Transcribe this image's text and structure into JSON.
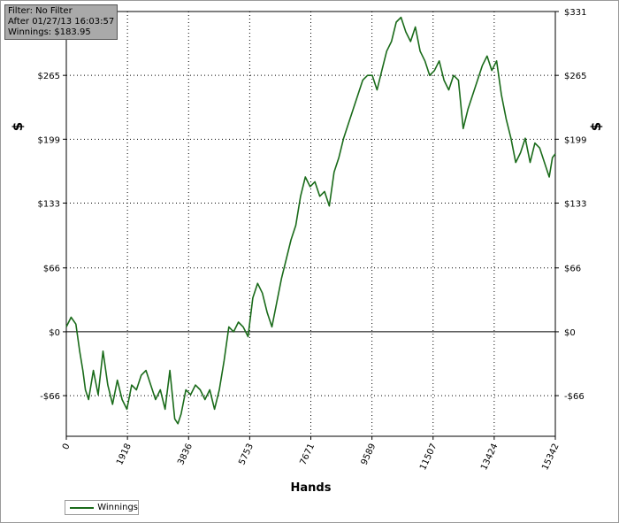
{
  "info": {
    "filter": "Filter: No Filter",
    "after": "After 01/27/13 16:03:57",
    "winnings": "Winnings: $183.95"
  },
  "legend": {
    "label": "Winnings"
  },
  "colors": {
    "line": "#1a6b1a",
    "grid": "#000000",
    "box": "#a9a9a9"
  },
  "chart_data": {
    "type": "line",
    "xlabel": "Hands",
    "ylabel": "$",
    "xlim": [
      0,
      15342
    ],
    "ylim": [
      -108,
      331
    ],
    "grid": true,
    "legend": "bottom-left",
    "x_ticks": [
      0,
      1918,
      3836,
      5753,
      7671,
      9589,
      11507,
      13424,
      15342
    ],
    "y_ticks": [
      {
        "value": -66,
        "label": "-$66"
      },
      {
        "value": 0,
        "label": "$0"
      },
      {
        "value": 66,
        "label": "$66"
      },
      {
        "value": 133,
        "label": "$133"
      },
      {
        "value": 199,
        "label": "$199"
      },
      {
        "value": 265,
        "label": "$265"
      },
      {
        "value": 331,
        "label": "$331"
      }
    ],
    "series": [
      {
        "name": "Winnings",
        "x": [
          0,
          150,
          300,
          420,
          520,
          600,
          700,
          850,
          1000,
          1150,
          1300,
          1450,
          1600,
          1750,
          1900,
          2050,
          2200,
          2350,
          2500,
          2650,
          2800,
          2950,
          3100,
          3250,
          3400,
          3500,
          3600,
          3750,
          3900,
          4050,
          4200,
          4350,
          4500,
          4650,
          4800,
          4950,
          5100,
          5250,
          5400,
          5550,
          5700,
          5850,
          6000,
          6150,
          6300,
          6450,
          6600,
          6750,
          6900,
          7050,
          7200,
          7350,
          7500,
          7650,
          7800,
          7950,
          8100,
          8250,
          8400,
          8550,
          8700,
          8850,
          9000,
          9150,
          9300,
          9450,
          9600,
          9750,
          9900,
          10050,
          10200,
          10350,
          10500,
          10650,
          10800,
          10950,
          11100,
          11250,
          11400,
          11550,
          11700,
          11850,
          12000,
          12150,
          12300,
          12450,
          12600,
          12750,
          12900,
          13050,
          13200,
          13350,
          13500,
          13650,
          13800,
          13950,
          14100,
          14250,
          14400,
          14550,
          14700,
          14850,
          15000,
          15150,
          15250,
          15342
        ],
        "values": [
          5,
          15,
          8,
          -20,
          -40,
          -60,
          -70,
          -40,
          -65,
          -20,
          -55,
          -75,
          -50,
          -70,
          -80,
          -55,
          -60,
          -45,
          -40,
          -55,
          -70,
          -60,
          -80,
          -40,
          -90,
          -95,
          -85,
          -60,
          -65,
          -55,
          -60,
          -70,
          -60,
          -80,
          -60,
          -30,
          5,
          0,
          10,
          5,
          -5,
          35,
          50,
          40,
          20,
          5,
          30,
          55,
          75,
          95,
          110,
          140,
          160,
          150,
          155,
          140,
          145,
          130,
          165,
          180,
          200,
          215,
          230,
          245,
          260,
          265,
          265,
          250,
          270,
          290,
          300,
          320,
          325,
          310,
          300,
          315,
          290,
          280,
          265,
          270,
          280,
          260,
          250,
          265,
          260,
          210,
          230,
          245,
          260,
          275,
          285,
          270,
          280,
          245,
          220,
          200,
          175,
          185,
          200,
          175,
          195,
          190,
          175,
          160,
          180,
          183.95
        ]
      }
    ]
  }
}
